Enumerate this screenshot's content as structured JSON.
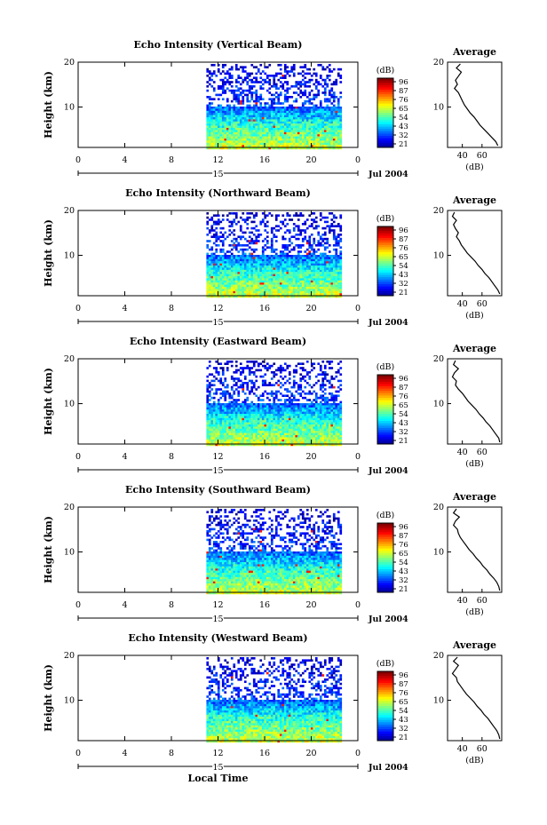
{
  "figure": {
    "xlabel": "Local Time",
    "date_label": "Jul 2004",
    "day_marker": "15"
  },
  "colorbar": {
    "unit": "(dB)",
    "ticks": [
      "96",
      "87",
      "76",
      "65",
      "54",
      "43",
      "32",
      "21"
    ]
  },
  "average_panel": {
    "title": "Average",
    "xlabel": "(dB)",
    "xticks": [
      "40",
      "60"
    ],
    "yticks": [
      "20",
      "10"
    ]
  },
  "chart_data": [
    {
      "type": "heatmap",
      "title": "Echo Intensity (Vertical Beam)",
      "ylabel": "Height (km)",
      "xticks": [
        "0",
        "4",
        "8",
        "12",
        "16",
        "20",
        "0"
      ],
      "yticks": [
        "20",
        "10"
      ],
      "xlim": [
        0,
        24
      ],
      "ylim": [
        1,
        20
      ],
      "data_start_hour": 11,
      "clim": [
        21,
        96
      ],
      "profile": {
        "type": "line",
        "xlim": [
          25,
          80
        ],
        "values_db_top_to_bottom": [
          38,
          34,
          39,
          36,
          33,
          35,
          32,
          36,
          38,
          40,
          42,
          45,
          48,
          52,
          55,
          58,
          62,
          66,
          70,
          74,
          76
        ]
      }
    },
    {
      "type": "heatmap",
      "title": "Echo Intensity (Northward Beam)",
      "ylabel": "Height (km)",
      "xticks": [
        "0",
        "4",
        "8",
        "12",
        "16",
        "20",
        "0"
      ],
      "yticks": [
        "20",
        "10"
      ],
      "xlim": [
        0,
        24
      ],
      "ylim": [
        1,
        20
      ],
      "data_start_hour": 11,
      "clim": [
        21,
        96
      ],
      "profile": {
        "type": "line",
        "xlim": [
          25,
          80
        ],
        "values_db_top_to_bottom": [
          32,
          30,
          34,
          31,
          33,
          36,
          34,
          37,
          39,
          42,
          45,
          49,
          53,
          56,
          60,
          63,
          67,
          70,
          73,
          76,
          78
        ]
      }
    },
    {
      "type": "heatmap",
      "title": "Echo Intensity (Eastward Beam)",
      "ylabel": "Height (km)",
      "xticks": [
        "0",
        "4",
        "8",
        "12",
        "16",
        "20",
        "0"
      ],
      "yticks": [
        "20",
        "10"
      ],
      "xlim": [
        0,
        24
      ],
      "ylim": [
        1,
        20
      ],
      "data_start_hour": 11,
      "clim": [
        21,
        96
      ],
      "profile": {
        "type": "line",
        "xlim": [
          25,
          80
        ],
        "values_db_top_to_bottom": [
          33,
          31,
          36,
          32,
          30,
          34,
          33,
          36,
          40,
          43,
          46,
          50,
          54,
          57,
          61,
          64,
          68,
          71,
          74,
          77,
          78
        ]
      }
    },
    {
      "type": "heatmap",
      "title": "Echo Intensity (Southward Beam)",
      "ylabel": "Height (km)",
      "xticks": [
        "0",
        "4",
        "8",
        "12",
        "16",
        "20",
        "0"
      ],
      "yticks": [
        "20",
        "10"
      ],
      "xlim": [
        0,
        24
      ],
      "ylim": [
        1,
        20
      ],
      "data_start_hour": 11,
      "clim": [
        21,
        96
      ],
      "profile": {
        "type": "line",
        "xlim": [
          25,
          80
        ],
        "values_db_top_to_bottom": [
          34,
          31,
          37,
          33,
          31,
          35,
          36,
          38,
          41,
          44,
          47,
          51,
          54,
          58,
          61,
          65,
          68,
          72,
          75,
          77,
          78
        ]
      }
    },
    {
      "type": "heatmap",
      "title": "Echo Intensity (Westward Beam)",
      "ylabel": "Height (km)",
      "xticks": [
        "0",
        "4",
        "8",
        "12",
        "16",
        "20",
        "0"
      ],
      "yticks": [
        "20",
        "10"
      ],
      "xlim": [
        0,
        24
      ],
      "ylim": [
        1,
        20
      ],
      "data_start_hour": 11,
      "clim": [
        21,
        96
      ],
      "profile": {
        "type": "line",
        "xlim": [
          25,
          80
        ],
        "values_db_top_to_bottom": [
          35,
          31,
          36,
          33,
          30,
          34,
          35,
          38,
          41,
          44,
          48,
          52,
          55,
          59,
          62,
          66,
          69,
          72,
          75,
          77,
          78
        ]
      }
    }
  ]
}
